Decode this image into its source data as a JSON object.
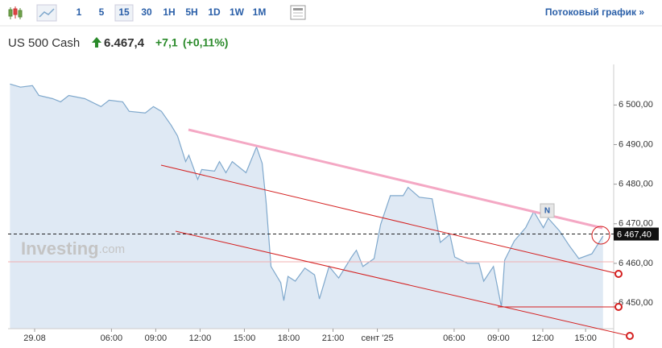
{
  "toolbar": {
    "intervals": [
      "1",
      "5",
      "15",
      "30",
      "1H",
      "5H",
      "1D",
      "1W",
      "1M"
    ],
    "active": "15",
    "stream_link": "Потоковый график »"
  },
  "header": {
    "name": "US 500 Cash",
    "price": "6.467,4",
    "change": "+7,1",
    "change_pct": "(+0,11%)"
  },
  "watermark": {
    "brand": "Investing",
    "domain": ".com"
  },
  "marker": "N",
  "chart_data": {
    "type": "area",
    "color": "#7fa8cc",
    "fill": "#dfe9f4",
    "x": [
      -0.87,
      -0.16,
      0.65,
      1.09,
      2.02,
      2.56,
      3.11,
      4.2,
      5.29,
      5.84,
      6.76,
      7.2,
      8.29,
      8.84,
      9.38,
      10.04,
      10.47,
      11.02,
      11.24,
      11.84,
      12.11,
      12.98,
      13.31,
      13.75,
      14.18,
      15.11,
      15.82,
      16.2,
      16.47,
      16.8,
      17.46,
      17.67,
      17.95,
      18.44,
      19.09,
      19.75,
      20.08,
      20.73,
      21.38,
      22.26,
      22.58,
      23.02,
      23.78,
      24.22,
      24.88,
      25.75,
      26.08,
      26.84,
      27.71,
      28.26,
      28.91,
      29.24,
      30.11,
      30.88,
      31.2,
      31.86,
      32.4,
      32.62,
      33.28,
      34.04,
      34.59,
      35.24,
      35.57,
      36.33,
      36.99,
      37.64,
      38.52,
      39.28
    ],
    "values": [
      6505.3,
      6504.5,
      6504.9,
      6502.4,
      6501.6,
      6500.8,
      6502.4,
      6501.6,
      6499.6,
      6501.2,
      6500.8,
      6498.4,
      6498.0,
      6499.6,
      6498.4,
      6494.9,
      6492.2,
      6485.7,
      6487.3,
      6481.2,
      6483.7,
      6483.3,
      6485.7,
      6482.9,
      6485.7,
      6482.9,
      6489.4,
      6485.3,
      6475.5,
      6459.2,
      6455.1,
      6450.6,
      6456.7,
      6455.5,
      6458.8,
      6457.1,
      6451.0,
      6459.2,
      6456.3,
      6461.6,
      6463.3,
      6459.2,
      6461.2,
      6469.8,
      6477.1,
      6477.1,
      6479.2,
      6476.7,
      6476.3,
      6465.3,
      6467.3,
      6461.6,
      6460.0,
      6460.0,
      6455.5,
      6459.2,
      6449.0,
      6460.8,
      6465.7,
      6469.0,
      6473.1,
      6469.0,
      6471.4,
      6468.2,
      6464.5,
      6461.2,
      6462.4,
      6466.9
    ],
    "xlim": [
      -1,
      40
    ],
    "xticks": [
      {
        "value": 0.8,
        "label": "29.08"
      },
      {
        "value": 6,
        "label": "06:00"
      },
      {
        "value": 9,
        "label": "09:00"
      },
      {
        "value": 12,
        "label": "12:00"
      },
      {
        "value": 15,
        "label": "15:00"
      },
      {
        "value": 18,
        "label": "18:00"
      },
      {
        "value": 21,
        "label": "21:00"
      },
      {
        "value": 24,
        "label": "сент '25"
      },
      {
        "value": 29.2,
        "label": "06:00"
      },
      {
        "value": 32.2,
        "label": "09:00"
      },
      {
        "value": 35.2,
        "label": "12:00"
      },
      {
        "value": 38.1,
        "label": "15:00"
      }
    ],
    "ylim": [
      6443.5,
      6507.8
    ],
    "yticks": [
      {
        "value": 6450,
        "label": "6 450,00"
      },
      {
        "value": 6460,
        "label": "6 460,00"
      },
      {
        "value": 6470,
        "label": "6 470,00"
      },
      {
        "value": 6480,
        "label": "6 480,00"
      },
      {
        "value": 6490,
        "label": "6 490,00"
      },
      {
        "value": 6500,
        "label": "6 500,00"
      }
    ],
    "last_price": {
      "value": 6467.4,
      "label": "6 467,40"
    }
  }
}
